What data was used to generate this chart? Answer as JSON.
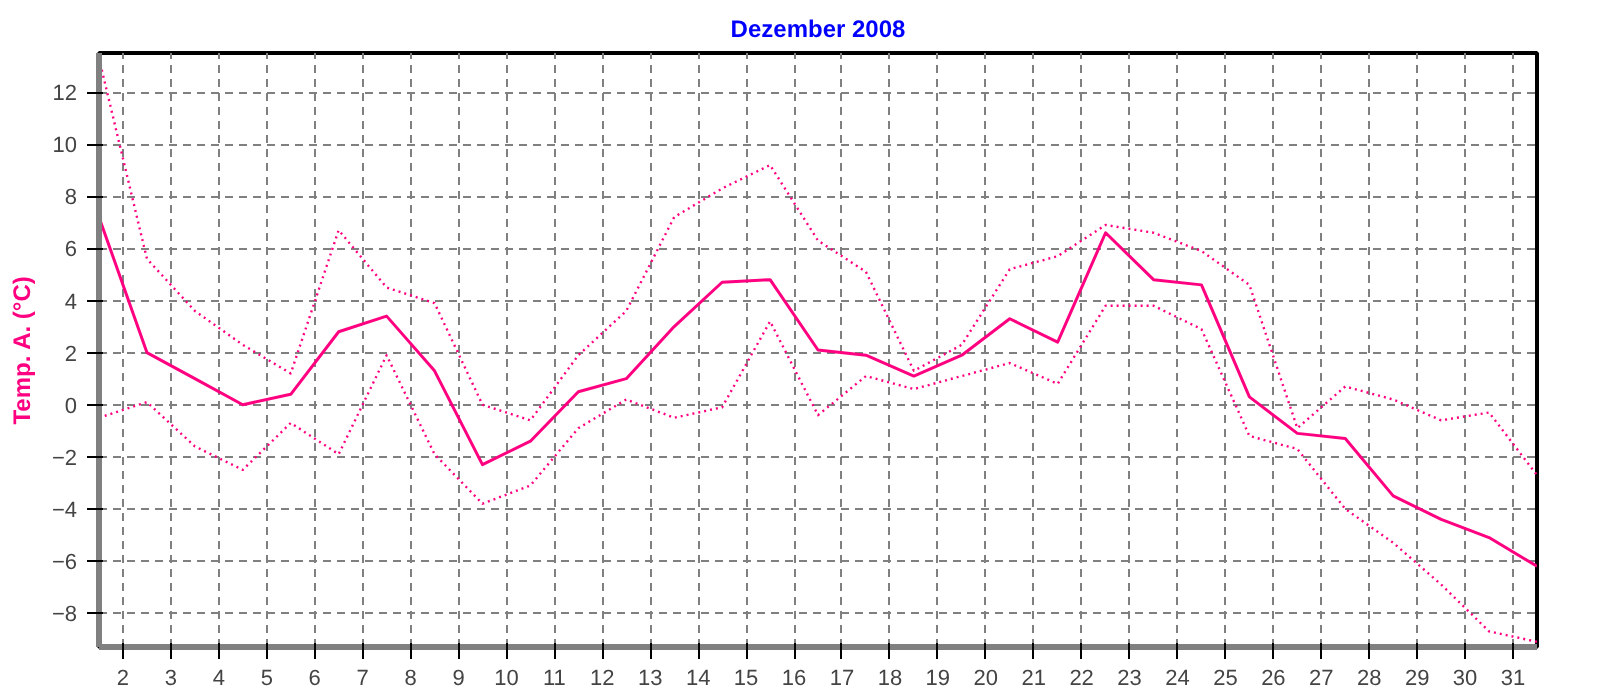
{
  "chart_data": {
    "type": "line",
    "title": "Dezember 2008",
    "ylabel": "Temp. A. (°C)",
    "x": [
      1.5,
      2.5,
      3.5,
      4.5,
      5.5,
      6.5,
      7.5,
      8.5,
      9.5,
      10.5,
      11.5,
      12.5,
      13.5,
      14.5,
      15.5,
      16.5,
      17.5,
      18.5,
      19.5,
      20.5,
      21.5,
      22.5,
      23.5,
      24.5,
      25.5,
      26.5,
      27.5,
      28.5,
      29.5,
      30.5,
      31.5
    ],
    "series": [
      {
        "color": "#ff0080",
        "line_style": "solid",
        "values": [
          7.2,
          2.0,
          1.0,
          0.0,
          0.4,
          2.8,
          3.4,
          1.3,
          -2.3,
          -1.4,
          0.5,
          1.0,
          3.0,
          4.7,
          4.8,
          2.1,
          1.9,
          1.1,
          1.9,
          3.3,
          2.4,
          6.6,
          4.8,
          4.6,
          0.3,
          -1.1,
          -1.3,
          -3.5,
          -4.4,
          -5.1,
          -6.2
        ]
      },
      {
        "color": "#ff0080",
        "line_style": "dotted",
        "values": [
          13.3,
          5.6,
          3.6,
          2.3,
          1.2,
          6.7,
          4.5,
          3.9,
          0.0,
          -0.6,
          1.9,
          3.6,
          7.2,
          8.3,
          9.2,
          6.3,
          5.1,
          1.3,
          2.3,
          5.2,
          5.7,
          6.9,
          6.6,
          5.9,
          4.6,
          -0.9,
          0.7,
          0.2,
          -0.6,
          -0.3,
          -2.7
        ]
      },
      {
        "color": "#ff0080",
        "line_style": "dotted",
        "values": [
          -0.5,
          0.1,
          -1.6,
          -2.5,
          -0.7,
          -1.9,
          1.9,
          -1.9,
          -3.8,
          -3.1,
          -0.9,
          0.2,
          -0.5,
          -0.1,
          3.2,
          -0.4,
          1.1,
          0.6,
          1.1,
          1.6,
          0.8,
          3.8,
          3.8,
          2.9,
          -1.2,
          -1.7,
          -4.0,
          -5.3,
          -6.9,
          -8.7,
          -9.1
        ]
      }
    ],
    "xlim": [
      1.5,
      31.5
    ],
    "ylim": [
      -9.3,
      13.5
    ],
    "xticks": [
      2,
      3,
      4,
      5,
      6,
      7,
      8,
      9,
      10,
      11,
      12,
      13,
      14,
      15,
      16,
      17,
      18,
      19,
      20,
      21,
      22,
      23,
      24,
      25,
      26,
      27,
      28,
      29,
      30,
      31
    ],
    "yticks": [
      -8,
      -6,
      -4,
      -2,
      0,
      2,
      4,
      6,
      8,
      10,
      12
    ],
    "grid": true,
    "marker": "none"
  }
}
